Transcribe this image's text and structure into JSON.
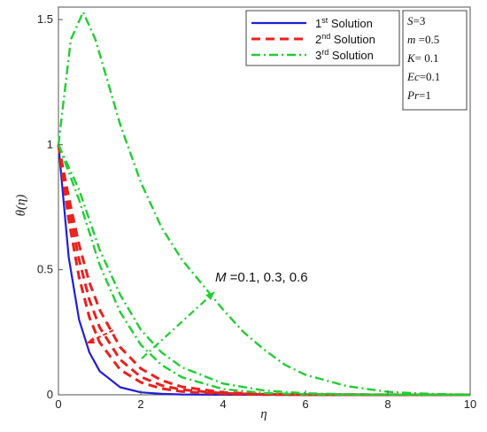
{
  "chart_data": {
    "type": "line",
    "xlabel": "η",
    "ylabel": "θ(η)",
    "xlim": [
      0,
      10
    ],
    "ylim": [
      0,
      1.55
    ],
    "x_ticks": [
      "0",
      "2",
      "4",
      "6",
      "8",
      "10"
    ],
    "y_ticks": [
      "0",
      "0.5",
      "1",
      "1.5"
    ],
    "legend": {
      "placement": "top-right",
      "entries": [
        {
          "ordinal": "1",
          "sup": "st",
          "label": "Solution",
          "color": "#1f1fd6",
          "style": "solid"
        },
        {
          "ordinal": "2",
          "sup": "nd",
          "label": "Solution",
          "color": "#e8211d",
          "style": "dashed"
        },
        {
          "ordinal": "3",
          "sup": "rd",
          "label": "Solution",
          "color": "#22cc33",
          "style": "dashdot"
        }
      ]
    },
    "parameters": [
      {
        "name": "S",
        "value": "=3"
      },
      {
        "name": "m",
        "value": " =0.5"
      },
      {
        "name": "K",
        "value": "= 0.1"
      },
      {
        "name": "Ec",
        "value": "=0.1"
      },
      {
        "name": "Pr",
        "value": "=1"
      }
    ],
    "annotation": {
      "var": "M",
      "text": " =0.1, 0.3, 0.6"
    },
    "series": [
      {
        "solution": "1",
        "color": "#1f1fd6",
        "style": "solid",
        "x": [
          0,
          0.25,
          0.5,
          0.75,
          1,
          1.5,
          2,
          2.5,
          3,
          4,
          5,
          10
        ],
        "y": [
          1.0,
          0.55,
          0.3,
          0.17,
          0.095,
          0.03,
          0.01,
          0.004,
          0.0015,
          0.0003,
          0.0001,
          0
        ]
      },
      {
        "solution": "2",
        "color": "#e8211d",
        "style": "dashed",
        "x": [
          0,
          0.25,
          0.5,
          0.75,
          1,
          1.5,
          2,
          2.5,
          3,
          4,
          5,
          6,
          10
        ],
        "y": [
          1.0,
          0.7,
          0.47,
          0.31,
          0.21,
          0.1,
          0.05,
          0.025,
          0.013,
          0.004,
          0.0012,
          0.0004,
          0
        ]
      },
      {
        "solution": "2",
        "color": "#e8211d",
        "style": "dashed",
        "x": [
          0,
          0.25,
          0.5,
          0.75,
          1,
          1.5,
          2,
          2.5,
          3,
          4,
          5,
          6,
          10
        ],
        "y": [
          1.0,
          0.75,
          0.54,
          0.38,
          0.27,
          0.14,
          0.072,
          0.038,
          0.02,
          0.006,
          0.0018,
          0.0005,
          0
        ]
      },
      {
        "solution": "2",
        "color": "#e8211d",
        "style": "dashed",
        "x": [
          0,
          0.25,
          0.5,
          0.75,
          1,
          1.5,
          2,
          2.5,
          3,
          4,
          5,
          6,
          10
        ],
        "y": [
          1.0,
          0.79,
          0.6,
          0.45,
          0.34,
          0.19,
          0.105,
          0.058,
          0.032,
          0.01,
          0.003,
          0.0009,
          0
        ]
      },
      {
        "solution": "3",
        "color": "#22cc33",
        "style": "dashdot",
        "x": [
          0,
          0.5,
          1,
          1.5,
          2,
          2.5,
          3,
          4,
          5,
          6,
          7,
          10
        ],
        "y": [
          1.0,
          0.78,
          0.52,
          0.33,
          0.2,
          0.12,
          0.07,
          0.023,
          0.007,
          0.002,
          0.0006,
          0
        ]
      },
      {
        "solution": "3",
        "color": "#22cc33",
        "style": "dashdot",
        "x": [
          0,
          0.5,
          1,
          1.5,
          2,
          2.5,
          3,
          4,
          5,
          6,
          7,
          10
        ],
        "y": [
          1.0,
          0.82,
          0.58,
          0.4,
          0.26,
          0.17,
          0.11,
          0.045,
          0.017,
          0.006,
          0.002,
          0
        ]
      },
      {
        "solution": "3",
        "color": "#22cc33",
        "style": "dashdot",
        "x": [
          0,
          0.3,
          0.6,
          0.9,
          1.2,
          1.5,
          2,
          2.5,
          3,
          3.5,
          4,
          4.5,
          5,
          5.5,
          6,
          7,
          8,
          9,
          10
        ],
        "y": [
          1.0,
          1.42,
          1.53,
          1.42,
          1.25,
          1.08,
          0.85,
          0.67,
          0.54,
          0.44,
          0.34,
          0.25,
          0.18,
          0.12,
          0.08,
          0.035,
          0.012,
          0.004,
          0.001
        ]
      }
    ]
  }
}
